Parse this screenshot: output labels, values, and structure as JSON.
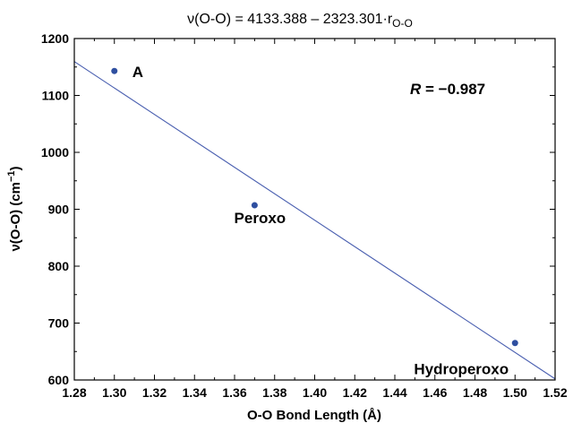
{
  "chart_data": {
    "type": "scatter",
    "title": {
      "prefix": "ν(O-O) = 4133.388 – 2323.301·r",
      "subscript": "O-O"
    },
    "xlabel": "O-O Bond Length (Å)",
    "ylabel": {
      "main": "ν(O-O)  (cm",
      "superscript": "−1",
      "close": ")"
    },
    "xlim": [
      1.28,
      1.52
    ],
    "ylim": [
      600,
      1200
    ],
    "x_ticks": [
      "1.28",
      "1.30",
      "1.32",
      "1.34",
      "1.36",
      "1.38",
      "1.40",
      "1.42",
      "1.44",
      "1.46",
      "1.48",
      "1.50",
      "1.52"
    ],
    "y_ticks": [
      "600",
      "700",
      "800",
      "900",
      "1000",
      "1100",
      "1200"
    ],
    "points": [
      {
        "label": "A",
        "x": 1.3,
        "y": 1143
      },
      {
        "label": "Peroxo",
        "x": 1.37,
        "y": 907
      },
      {
        "label": "Hydroperoxo",
        "x": 1.5,
        "y": 665
      }
    ],
    "fit": {
      "intercept": 4133.388,
      "slope": -2323.301
    },
    "annotation": {
      "symbol": "R",
      "text": " = −0.987"
    },
    "colors": {
      "points": "#2f4fa0",
      "fit_line": "#4a5fb0",
      "axis": "#000000"
    },
    "grid": false,
    "legend": "none"
  }
}
